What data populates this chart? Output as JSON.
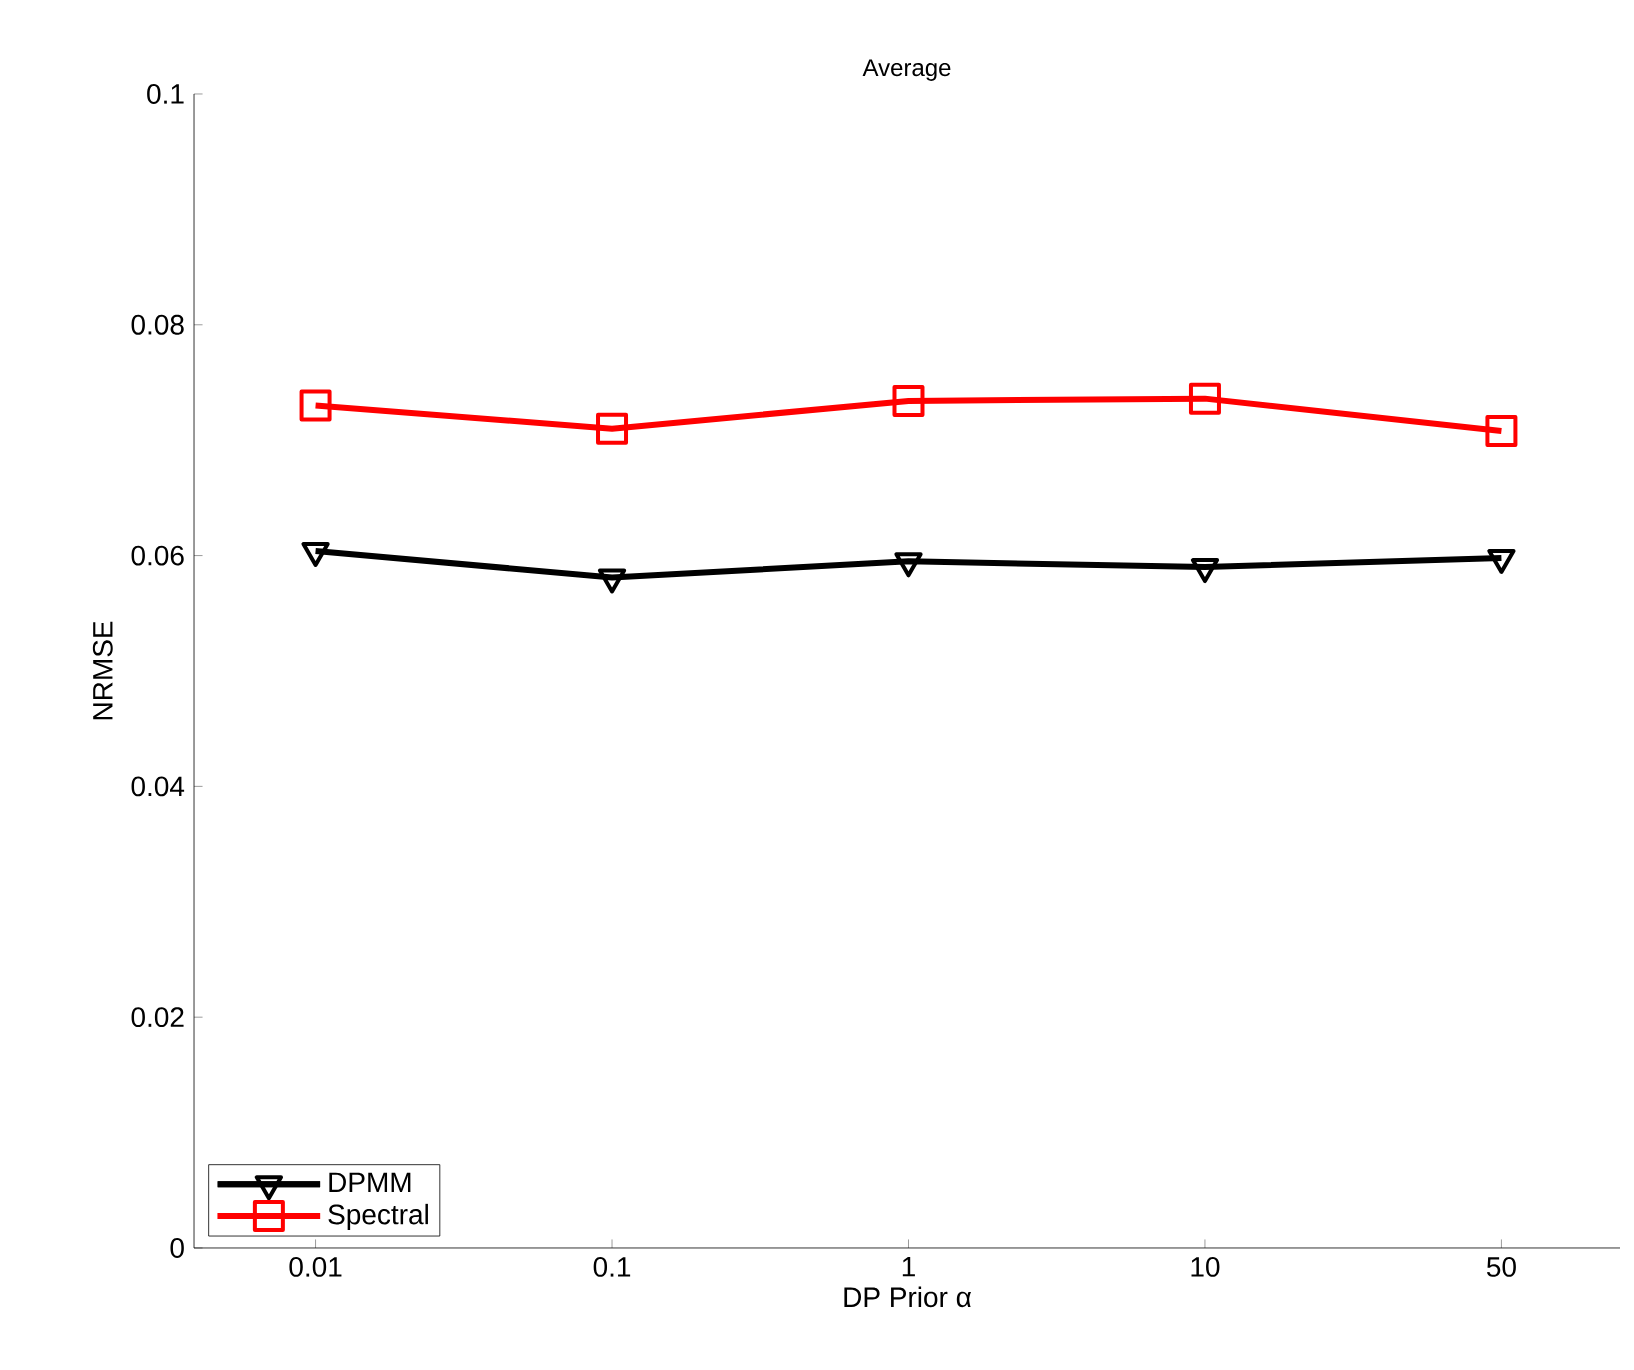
{
  "chart_data": {
    "type": "line",
    "title": "Average",
    "xlabel": "DP Prior α",
    "ylabel": "NRMSE",
    "categories": [
      "0.01",
      "0.1",
      "1",
      "10",
      "50"
    ],
    "series": [
      {
        "name": "DPMM",
        "color": "#000000",
        "marker": "triangle",
        "values": [
          0.0604,
          0.0581,
          0.0595,
          0.059,
          0.0598
        ]
      },
      {
        "name": "Spectral",
        "color": "#ff0000",
        "marker": "square",
        "values": [
          0.073,
          0.071,
          0.0734,
          0.0736,
          0.0708
        ]
      }
    ],
    "ylim": [
      0,
      0.1
    ],
    "yticks": [
      0,
      0.02,
      0.04,
      0.06,
      0.08,
      0.1
    ],
    "grid": false,
    "legend": "bottom left",
    "line_style": "solid"
  }
}
